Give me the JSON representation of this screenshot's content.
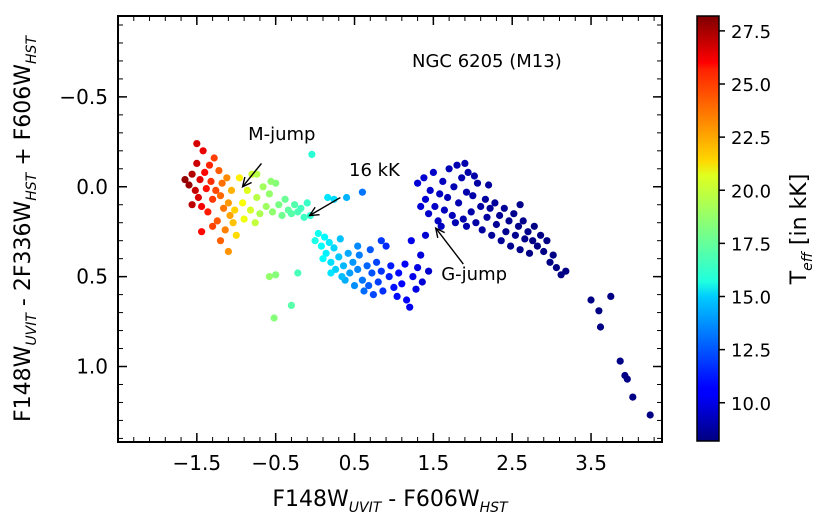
{
  "chart_data": {
    "type": "scatter",
    "annotation_title": "NGC 6205 (M13)",
    "xlabel": {
      "main": "F148W",
      "sub1": "UVIT",
      "mid": " - F606W",
      "sub2": "HST"
    },
    "ylabel": {
      "main": "F148W",
      "sub1": "UVIT",
      "mid": " - 2F336W",
      "sub2": "HST",
      "mid2": " + F606W",
      "sub3": "HST"
    },
    "xlim": [
      -2.5,
      4.4
    ],
    "ylim": [
      1.42,
      -0.95
    ],
    "y_inverted": true,
    "x_ticks": [
      -1.5,
      -0.5,
      0.5,
      1.5,
      2.5,
      3.5
    ],
    "x_tick_labels": [
      "−1.5",
      "−0.5",
      "0.5",
      "1.5",
      "2.5",
      "3.5"
    ],
    "y_ticks": [
      -0.5,
      0.0,
      0.5,
      1.0
    ],
    "y_tick_labels": [
      "−0.5",
      "0.0",
      "0.5",
      "1.0"
    ],
    "colorbar": {
      "label_main": "T",
      "label_sub": "eff",
      "label_rest": " [in kK]",
      "range": [
        8.2,
        28.2
      ],
      "ticks": [
        10.0,
        12.5,
        15.0,
        17.5,
        20.0,
        22.5,
        25.0,
        27.5
      ],
      "tick_labels": [
        "10.0",
        "12.5",
        "15.0",
        "17.5",
        "20.0",
        "22.5",
        "25.0",
        "27.5"
      ],
      "colormap": "jet"
    },
    "annotations": [
      {
        "text": "M-jump",
        "text_x": -0.85,
        "text_y": -0.26,
        "arrow_from": [
          -0.68,
          -0.13
        ],
        "arrow_to": [
          -0.92,
          0.0
        ]
      },
      {
        "text": "16 kK",
        "text_x": 0.43,
        "text_y": -0.06,
        "arrow_from": [
          0.32,
          0.06
        ],
        "arrow_to": [
          -0.07,
          0.16
        ]
      },
      {
        "text": "G-jump",
        "text_x": 1.6,
        "text_y": 0.52,
        "arrow_from": [
          1.88,
          0.43
        ],
        "arrow_to": [
          1.53,
          0.23
        ]
      }
    ],
    "points": [
      {
        "x": -1.65,
        "y": -0.04,
        "t": 27.8
      },
      {
        "x": -1.6,
        "y": -0.01,
        "t": 27.7
      },
      {
        "x": -1.56,
        "y": -0.07,
        "t": 27.2
      },
      {
        "x": -1.52,
        "y": 0.02,
        "t": 26.8
      },
      {
        "x": -1.5,
        "y": -0.13,
        "t": 26.7
      },
      {
        "x": -1.48,
        "y": 0.06,
        "t": 26.4
      },
      {
        "x": -1.46,
        "y": -0.04,
        "t": 26.3
      },
      {
        "x": -1.44,
        "y": 0.11,
        "t": 25.9
      },
      {
        "x": -1.42,
        "y": -0.2,
        "t": 26.1
      },
      {
        "x": -1.4,
        "y": -0.08,
        "t": 25.6
      },
      {
        "x": -1.38,
        "y": 0.01,
        "t": 25.4
      },
      {
        "x": -1.36,
        "y": 0.14,
        "t": 25.2
      },
      {
        "x": -1.34,
        "y": -0.12,
        "t": 25.0
      },
      {
        "x": -1.32,
        "y": -0.03,
        "t": 24.8
      },
      {
        "x": -1.3,
        "y": 0.07,
        "t": 24.6
      },
      {
        "x": -1.28,
        "y": -0.16,
        "t": 24.5
      },
      {
        "x": -1.26,
        "y": 0.02,
        "t": 24.3
      },
      {
        "x": -1.24,
        "y": 0.19,
        "t": 24.0
      },
      {
        "x": -1.22,
        "y": -0.09,
        "t": 23.9
      },
      {
        "x": -1.2,
        "y": 0.05,
        "t": 23.7
      },
      {
        "x": -1.18,
        "y": -0.02,
        "t": 23.5
      },
      {
        "x": -1.16,
        "y": 0.12,
        "t": 23.4
      },
      {
        "x": -1.14,
        "y": 0.24,
        "t": 23.2
      },
      {
        "x": -1.12,
        "y": -0.05,
        "t": 23.0
      },
      {
        "x": -1.1,
        "y": 0.09,
        "t": 22.7
      },
      {
        "x": -1.08,
        "y": 0.16,
        "t": 22.5
      },
      {
        "x": -1.06,
        "y": 0.02,
        "t": 22.2
      },
      {
        "x": -1.04,
        "y": 0.2,
        "t": 21.9
      },
      {
        "x": -1.02,
        "y": 0.13,
        "t": 21.6
      },
      {
        "x": -1.0,
        "y": 0.27,
        "t": 21.4
      },
      {
        "x": -1.56,
        "y": 0.1,
        "t": 27.0
      },
      {
        "x": -1.44,
        "y": 0.25,
        "t": 25.6
      },
      {
        "x": -1.3,
        "y": 0.22,
        "t": 24.4
      },
      {
        "x": -1.2,
        "y": 0.3,
        "t": 23.8
      },
      {
        "x": -1.1,
        "y": 0.36,
        "t": 22.8
      },
      {
        "x": -1.5,
        "y": -0.24,
        "t": 26.5
      },
      {
        "x": -0.96,
        "y": -0.05,
        "t": 21.0
      },
      {
        "x": -0.92,
        "y": 0.09,
        "t": 20.6
      },
      {
        "x": -0.9,
        "y": 0.18,
        "t": 20.4
      },
      {
        "x": -0.86,
        "y": 0.02,
        "t": 20.1
      },
      {
        "x": -0.82,
        "y": 0.13,
        "t": 19.9
      },
      {
        "x": -0.8,
        "y": -0.07,
        "t": 19.7
      },
      {
        "x": -0.76,
        "y": 0.2,
        "t": 19.5
      },
      {
        "x": -0.74,
        "y": 0.06,
        "t": 19.3
      },
      {
        "x": -0.7,
        "y": 0.15,
        "t": 19.1
      },
      {
        "x": -0.66,
        "y": 0.0,
        "t": 18.9
      },
      {
        "x": -0.62,
        "y": 0.11,
        "t": 18.8
      },
      {
        "x": -0.58,
        "y": 0.04,
        "t": 18.6
      },
      {
        "x": -0.54,
        "y": 0.14,
        "t": 18.5
      },
      {
        "x": -0.5,
        "y": -0.02,
        "t": 18.3
      },
      {
        "x": -0.46,
        "y": 0.1,
        "t": 18.1
      },
      {
        "x": -0.42,
        "y": 0.16,
        "t": 17.9
      },
      {
        "x": -0.38,
        "y": 0.07,
        "t": 17.8
      },
      {
        "x": -0.34,
        "y": 0.13,
        "t": 17.6
      },
      {
        "x": -0.3,
        "y": 0.15,
        "t": 17.4
      },
      {
        "x": -0.26,
        "y": 0.1,
        "t": 17.3
      },
      {
        "x": -0.22,
        "y": 0.14,
        "t": 17.2
      },
      {
        "x": -0.18,
        "y": 0.12,
        "t": 17.0
      },
      {
        "x": -0.14,
        "y": 0.17,
        "t": 16.9
      },
      {
        "x": -0.1,
        "y": 0.09,
        "t": 16.8
      },
      {
        "x": -0.06,
        "y": 0.16,
        "t": 16.6
      },
      {
        "x": -0.74,
        "y": -0.07,
        "t": 19.3
      },
      {
        "x": -0.56,
        "y": -0.03,
        "t": 18.5
      },
      {
        "x": -0.58,
        "y": 0.5,
        "t": 18.6
      },
      {
        "x": -0.5,
        "y": 0.49,
        "t": 18.3
      },
      {
        "x": -0.52,
        "y": 0.73,
        "t": 18.3
      },
      {
        "x": -0.22,
        "y": 0.48,
        "t": 17.1
      },
      {
        "x": -0.3,
        "y": 0.66,
        "t": 17.4
      },
      {
        "x": -0.04,
        "y": -0.18,
        "t": 16.5
      },
      {
        "x": 0.0,
        "y": 0.3,
        "t": 16.2
      },
      {
        "x": 0.04,
        "y": 0.26,
        "t": 16.0
      },
      {
        "x": 0.08,
        "y": 0.33,
        "t": 15.8
      },
      {
        "x": 0.12,
        "y": 0.28,
        "t": 15.6
      },
      {
        "x": 0.14,
        "y": 0.37,
        "t": 15.4
      },
      {
        "x": 0.18,
        "y": 0.31,
        "t": 15.3
      },
      {
        "x": 0.2,
        "y": 0.42,
        "t": 15.1
      },
      {
        "x": 0.24,
        "y": 0.34,
        "t": 14.9
      },
      {
        "x": 0.26,
        "y": 0.46,
        "t": 14.8
      },
      {
        "x": 0.3,
        "y": 0.39,
        "t": 14.6
      },
      {
        "x": 0.32,
        "y": 0.29,
        "t": 14.5
      },
      {
        "x": 0.36,
        "y": 0.44,
        "t": 14.3
      },
      {
        "x": 0.38,
        "y": 0.52,
        "t": 14.1
      },
      {
        "x": 0.42,
        "y": 0.37,
        "t": 14.0
      },
      {
        "x": 0.44,
        "y": 0.48,
        "t": 13.8
      },
      {
        "x": 0.48,
        "y": 0.42,
        "t": 13.7
      },
      {
        "x": 0.5,
        "y": 0.55,
        "t": 13.5
      },
      {
        "x": 0.54,
        "y": 0.46,
        "t": 13.3
      },
      {
        "x": 0.56,
        "y": 0.38,
        "t": 13.2
      },
      {
        "x": 0.6,
        "y": 0.52,
        "t": 13.0
      },
      {
        "x": 0.62,
        "y": 0.58,
        "t": 12.8
      },
      {
        "x": 0.66,
        "y": 0.44,
        "t": 12.7
      },
      {
        "x": 0.68,
        "y": 0.55,
        "t": 12.5
      },
      {
        "x": 0.72,
        "y": 0.48,
        "t": 12.3
      },
      {
        "x": 0.74,
        "y": 0.6,
        "t": 12.1
      },
      {
        "x": 0.78,
        "y": 0.42,
        "t": 12.0
      },
      {
        "x": 0.8,
        "y": 0.53,
        "t": 11.9
      },
      {
        "x": 0.84,
        "y": 0.47,
        "t": 11.7
      },
      {
        "x": 0.86,
        "y": 0.58,
        "t": 11.6
      },
      {
        "x": 0.9,
        "y": 0.33,
        "t": 11.5
      },
      {
        "x": 0.94,
        "y": 0.5,
        "t": 11.3
      },
      {
        "x": 0.96,
        "y": 0.44,
        "t": 11.2
      },
      {
        "x": 1.0,
        "y": 0.56,
        "t": 11.0
      },
      {
        "x": 1.04,
        "y": 0.61,
        "t": 10.9
      },
      {
        "x": 1.06,
        "y": 0.48,
        "t": 10.8
      },
      {
        "x": 1.1,
        "y": 0.54,
        "t": 10.7
      },
      {
        "x": 1.14,
        "y": 0.43,
        "t": 10.6
      },
      {
        "x": 1.16,
        "y": 0.63,
        "t": 10.5
      },
      {
        "x": 1.2,
        "y": 0.67,
        "t": 10.4
      },
      {
        "x": 1.24,
        "y": 0.5,
        "t": 10.3
      },
      {
        "x": 1.28,
        "y": 0.57,
        "t": 10.2
      },
      {
        "x": 1.3,
        "y": 0.45,
        "t": 10.1
      },
      {
        "x": 1.34,
        "y": 0.38,
        "t": 10.0
      },
      {
        "x": 1.36,
        "y": 0.53,
        "t": 9.9
      },
      {
        "x": 1.4,
        "y": 0.27,
        "t": 9.8
      },
      {
        "x": 1.44,
        "y": 0.47,
        "t": 9.7
      },
      {
        "x": 0.16,
        "y": 0.06,
        "t": 15.2
      },
      {
        "x": 0.24,
        "y": 0.07,
        "t": 15.0
      },
      {
        "x": 0.4,
        "y": 0.06,
        "t": 14.2
      },
      {
        "x": 0.6,
        "y": 0.03,
        "t": 13.0
      },
      {
        "x": 0.1,
        "y": 0.4,
        "t": 15.7
      },
      {
        "x": 0.2,
        "y": 0.48,
        "t": 15.2
      },
      {
        "x": 0.34,
        "y": 0.5,
        "t": 14.4
      },
      {
        "x": 0.54,
        "y": 0.33,
        "t": 13.4
      },
      {
        "x": 0.7,
        "y": 0.35,
        "t": 12.4
      },
      {
        "x": 0.84,
        "y": 0.3,
        "t": 11.8
      },
      {
        "x": 1.22,
        "y": 0.3,
        "t": 10.3
      },
      {
        "x": 1.3,
        "y": -0.02,
        "t": 9.9
      },
      {
        "x": 1.34,
        "y": 0.11,
        "t": 9.9
      },
      {
        "x": 1.38,
        "y": -0.05,
        "t": 9.8
      },
      {
        "x": 1.4,
        "y": 0.07,
        "t": 9.8
      },
      {
        "x": 1.44,
        "y": 0.15,
        "t": 9.7
      },
      {
        "x": 1.46,
        "y": 0.02,
        "t": 9.7
      },
      {
        "x": 1.5,
        "y": -0.08,
        "t": 9.6
      },
      {
        "x": 1.52,
        "y": 0.11,
        "t": 9.6
      },
      {
        "x": 1.56,
        "y": 0.19,
        "t": 9.5
      },
      {
        "x": 1.58,
        "y": 0.04,
        "t": 9.5
      },
      {
        "x": 1.62,
        "y": -0.03,
        "t": 9.4
      },
      {
        "x": 1.64,
        "y": 0.13,
        "t": 9.4
      },
      {
        "x": 1.68,
        "y": 0.06,
        "t": 9.3
      },
      {
        "x": 1.7,
        "y": -0.1,
        "t": 9.3
      },
      {
        "x": 1.74,
        "y": 0.16,
        "t": 9.3
      },
      {
        "x": 1.76,
        "y": 0.0,
        "t": 9.2
      },
      {
        "x": 1.8,
        "y": -0.12,
        "t": 9.2
      },
      {
        "x": 1.82,
        "y": 0.09,
        "t": 9.2
      },
      {
        "x": 1.86,
        "y": -0.05,
        "t": 9.1
      },
      {
        "x": 1.88,
        "y": 0.18,
        "t": 9.1
      },
      {
        "x": 1.92,
        "y": 0.03,
        "t": 9.1
      },
      {
        "x": 1.94,
        "y": -0.08,
        "t": 9.0
      },
      {
        "x": 1.98,
        "y": 0.14,
        "t": 9.0
      },
      {
        "x": 2.0,
        "y": 0.05,
        "t": 9.0
      },
      {
        "x": 2.04,
        "y": 0.2,
        "t": 8.9
      },
      {
        "x": 2.06,
        "y": -0.02,
        "t": 8.9
      },
      {
        "x": 2.1,
        "y": 0.11,
        "t": 8.9
      },
      {
        "x": 2.12,
        "y": 0.24,
        "t": 8.8
      },
      {
        "x": 2.16,
        "y": 0.07,
        "t": 8.8
      },
      {
        "x": 2.18,
        "y": 0.17,
        "t": 8.8
      },
      {
        "x": 2.22,
        "y": 0.12,
        "t": 8.7
      },
      {
        "x": 2.24,
        "y": 0.27,
        "t": 8.7
      },
      {
        "x": 2.28,
        "y": 0.09,
        "t": 8.7
      },
      {
        "x": 2.3,
        "y": 0.21,
        "t": 8.6
      },
      {
        "x": 2.34,
        "y": 0.16,
        "t": 8.6
      },
      {
        "x": 2.36,
        "y": 0.3,
        "t": 8.6
      },
      {
        "x": 2.4,
        "y": 0.12,
        "t": 8.6
      },
      {
        "x": 2.42,
        "y": 0.25,
        "t": 8.5
      },
      {
        "x": 2.46,
        "y": 0.19,
        "t": 8.5
      },
      {
        "x": 2.48,
        "y": 0.33,
        "t": 8.5
      },
      {
        "x": 2.52,
        "y": 0.15,
        "t": 8.5
      },
      {
        "x": 2.54,
        "y": 0.27,
        "t": 8.5
      },
      {
        "x": 2.58,
        "y": 0.22,
        "t": 8.4
      },
      {
        "x": 2.6,
        "y": 0.35,
        "t": 8.4
      },
      {
        "x": 2.64,
        "y": 0.19,
        "t": 8.4
      },
      {
        "x": 2.66,
        "y": 0.29,
        "t": 8.4
      },
      {
        "x": 2.7,
        "y": 0.25,
        "t": 8.4
      },
      {
        "x": 2.72,
        "y": 0.37,
        "t": 8.3
      },
      {
        "x": 2.76,
        "y": 0.3,
        "t": 8.3
      },
      {
        "x": 2.78,
        "y": 0.22,
        "t": 8.3
      },
      {
        "x": 2.82,
        "y": 0.33,
        "t": 8.3
      },
      {
        "x": 2.86,
        "y": 0.27,
        "t": 8.3
      },
      {
        "x": 2.9,
        "y": 0.36,
        "t": 8.3
      },
      {
        "x": 2.94,
        "y": 0.3,
        "t": 8.3
      },
      {
        "x": 2.98,
        "y": 0.42,
        "t": 8.3
      },
      {
        "x": 3.02,
        "y": 0.38,
        "t": 8.3
      },
      {
        "x": 3.06,
        "y": 0.45,
        "t": 8.3
      },
      {
        "x": 3.12,
        "y": 0.49,
        "t": 8.3
      },
      {
        "x": 3.18,
        "y": 0.47,
        "t": 8.3
      },
      {
        "x": 1.78,
        "y": 0.2,
        "t": 9.2
      },
      {
        "x": 1.92,
        "y": 0.22,
        "t": 9.1
      },
      {
        "x": 2.02,
        "y": -0.06,
        "t": 9.0
      },
      {
        "x": 2.2,
        "y": -0.01,
        "t": 8.8
      },
      {
        "x": 1.9,
        "y": -0.13,
        "t": 9.1
      },
      {
        "x": 1.6,
        "y": 0.22,
        "t": 9.5
      },
      {
        "x": 2.6,
        "y": 0.1,
        "t": 8.4
      },
      {
        "x": 3.5,
        "y": 0.63,
        "t": 8.3
      },
      {
        "x": 3.62,
        "y": 0.78,
        "t": 8.3
      },
      {
        "x": 3.75,
        "y": 0.61,
        "t": 8.3
      },
      {
        "x": 3.6,
        "y": 0.69,
        "t": 8.3
      },
      {
        "x": 3.87,
        "y": 0.97,
        "t": 8.3
      },
      {
        "x": 3.93,
        "y": 1.05,
        "t": 8.3
      },
      {
        "x": 3.96,
        "y": 1.07,
        "t": 8.3
      },
      {
        "x": 4.03,
        "y": 1.17,
        "t": 8.3
      },
      {
        "x": 4.25,
        "y": 1.27,
        "t": 8.3
      }
    ]
  }
}
